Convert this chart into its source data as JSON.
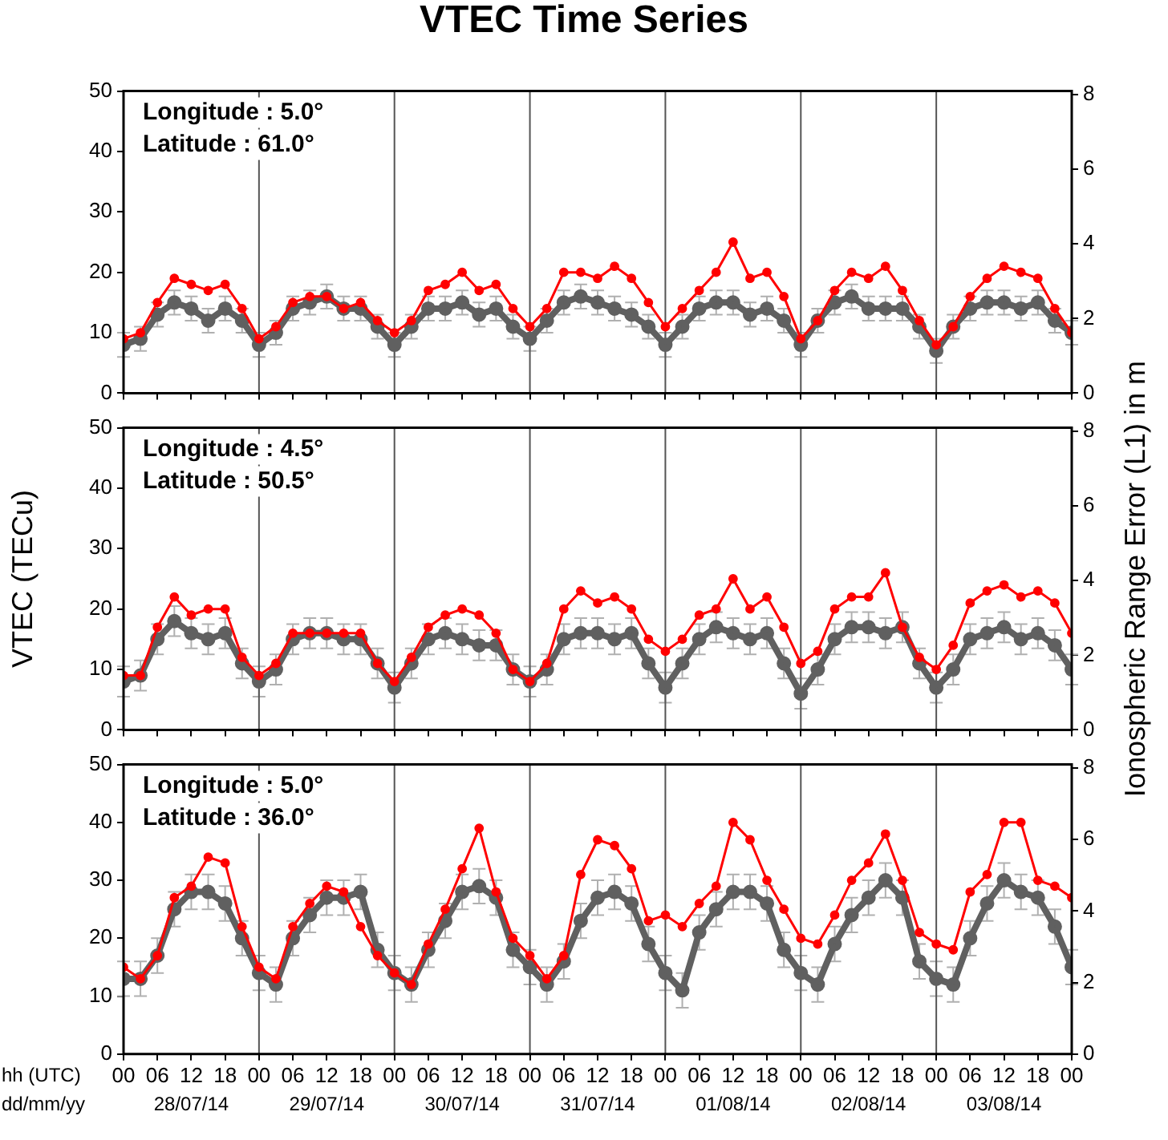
{
  "chart_data": [
    {
      "type": "line",
      "title": "VTEC Time Series",
      "x": [
        0,
        3,
        6,
        9,
        12,
        15,
        18,
        21,
        24,
        27,
        30,
        33,
        36,
        39,
        42,
        45,
        48,
        51,
        54,
        57,
        60,
        63,
        66,
        69,
        72,
        75,
        78,
        81,
        84,
        87,
        90,
        93,
        96,
        99,
        102,
        105,
        108,
        111,
        114,
        117,
        120,
        123,
        126,
        129,
        132,
        135,
        138,
        141,
        144,
        147,
        150,
        153,
        156,
        159,
        162,
        165,
        168
      ],
      "xlim": [
        0,
        168
      ],
      "xticks": [
        0,
        6,
        12,
        18,
        24,
        30,
        36,
        42,
        48,
        54,
        60,
        66,
        72,
        78,
        84,
        90,
        96,
        102,
        108,
        114,
        120,
        126,
        132,
        138,
        144,
        150,
        156,
        162,
        168
      ],
      "ylim": [
        0,
        50
      ],
      "yticks": [
        0,
        10,
        20,
        30,
        40,
        50
      ],
      "y2lim": [
        0,
        8.1
      ],
      "y2ticks": [
        0,
        2,
        4,
        6,
        8
      ],
      "tick_labels": "y",
      "marker": "circle",
      "ref_lines": [
        {
          "axis": "x",
          "value": 24
        },
        {
          "axis": "x",
          "value": 48
        },
        {
          "axis": "x",
          "value": 72
        },
        {
          "axis": "x",
          "value": 96
        },
        {
          "axis": "x",
          "value": 120
        },
        {
          "axis": "x",
          "value": 144
        }
      ],
      "annotations": [
        "Longitude : 5.0°",
        "Latitude : 61.0°"
      ],
      "series": [
        {
          "color": "#606060",
          "values": [
            8,
            9,
            13,
            15,
            14,
            12,
            14,
            12,
            8,
            10,
            14,
            15,
            16,
            14,
            14,
            11,
            8,
            11,
            14,
            14,
            15,
            13,
            14,
            11,
            9,
            12,
            15,
            16,
            15,
            14,
            13,
            11,
            8,
            11,
            14,
            15,
            15,
            13,
            14,
            12,
            8,
            12,
            15,
            16,
            14,
            14,
            14,
            11,
            7,
            11,
            14,
            15,
            15,
            14,
            15,
            12,
            10
          ],
          "errors": [
            2,
            2,
            2,
            2,
            2,
            2,
            2,
            2,
            2,
            2,
            2,
            2,
            2,
            2,
            2,
            2,
            2,
            2,
            2,
            2,
            2,
            2,
            2,
            2,
            2,
            2,
            2,
            2,
            2,
            2,
            2,
            2,
            2,
            2,
            2,
            2,
            2,
            2,
            2,
            2,
            2,
            2,
            2,
            2,
            2,
            2,
            2,
            2,
            2,
            2,
            2,
            2,
            2,
            2,
            2,
            2,
            2
          ]
        },
        {
          "color": "#ff0000",
          "values": [
            9,
            10,
            15,
            19,
            18,
            17,
            18,
            14,
            9,
            11,
            15,
            16,
            16,
            14,
            15,
            12,
            10,
            12,
            17,
            18,
            20,
            17,
            18,
            14,
            11,
            14,
            20,
            20,
            19,
            21,
            19,
            15,
            11,
            14,
            17,
            20,
            25,
            19,
            20,
            16,
            9,
            12,
            17,
            20,
            19,
            21,
            17,
            12,
            8,
            11,
            16,
            19,
            21,
            20,
            19,
            14,
            10
          ]
        }
      ]
    },
    {
      "type": "line",
      "x": [
        0,
        3,
        6,
        9,
        12,
        15,
        18,
        21,
        24,
        27,
        30,
        33,
        36,
        39,
        42,
        45,
        48,
        51,
        54,
        57,
        60,
        63,
        66,
        69,
        72,
        75,
        78,
        81,
        84,
        87,
        90,
        93,
        96,
        99,
        102,
        105,
        108,
        111,
        114,
        117,
        120,
        123,
        126,
        129,
        132,
        135,
        138,
        141,
        144,
        147,
        150,
        153,
        156,
        159,
        162,
        165,
        168
      ],
      "xlim": [
        0,
        168
      ],
      "xticks": [
        0,
        6,
        12,
        18,
        24,
        30,
        36,
        42,
        48,
        54,
        60,
        66,
        72,
        78,
        84,
        90,
        96,
        102,
        108,
        114,
        120,
        126,
        132,
        138,
        144,
        150,
        156,
        162,
        168
      ],
      "ylim": [
        0,
        50
      ],
      "yticks": [
        0,
        10,
        20,
        30,
        40,
        50
      ],
      "y2lim": [
        0,
        8.1
      ],
      "y2ticks": [
        0,
        2,
        4,
        6,
        8
      ],
      "tick_labels": "y",
      "marker": "circle",
      "ylabel": "VTEC (TECu)",
      "y2label": "Ionospheric Range Error (L1) in m",
      "ref_lines": [
        {
          "axis": "x",
          "value": 24
        },
        {
          "axis": "x",
          "value": 48
        },
        {
          "axis": "x",
          "value": 72
        },
        {
          "axis": "x",
          "value": 96
        },
        {
          "axis": "x",
          "value": 120
        },
        {
          "axis": "x",
          "value": 144
        }
      ],
      "annotations": [
        "Longitude : 4.5°",
        "Latitude : 50.5°"
      ],
      "series": [
        {
          "color": "#606060",
          "values": [
            8,
            9,
            15,
            18,
            16,
            15,
            16,
            11,
            8,
            10,
            15,
            16,
            16,
            15,
            15,
            11,
            7,
            11,
            15,
            16,
            15,
            14,
            14,
            10,
            8,
            10,
            15,
            16,
            16,
            15,
            16,
            11,
            7,
            11,
            15,
            17,
            16,
            15,
            16,
            11,
            6,
            10,
            15,
            17,
            17,
            16,
            17,
            11,
            7,
            10,
            15,
            16,
            17,
            15,
            16,
            14,
            10
          ],
          "errors": [
            2.5,
            2.5,
            2.5,
            2.5,
            2.5,
            2.5,
            2.5,
            2.5,
            2.5,
            2.5,
            2.5,
            2.5,
            2.5,
            2.5,
            2.5,
            2.5,
            2.5,
            2.5,
            2.5,
            2.5,
            2.5,
            2.5,
            2.5,
            2.5,
            2.5,
            2.5,
            2.5,
            2.5,
            2.5,
            2.5,
            2.5,
            2.5,
            2.5,
            2.5,
            2.5,
            2.5,
            2.5,
            2.5,
            2.5,
            2.5,
            2.5,
            2.5,
            2.5,
            2.5,
            2.5,
            2.5,
            2.5,
            2.5,
            2.5,
            2.5,
            2.5,
            2.5,
            2.5,
            2.5,
            2.5,
            2.5,
            2.5
          ]
        },
        {
          "color": "#ff0000",
          "values": [
            9,
            9,
            17,
            22,
            19,
            20,
            20,
            12,
            9,
            11,
            16,
            16,
            16,
            16,
            16,
            11,
            8,
            12,
            17,
            19,
            20,
            19,
            16,
            10,
            8,
            11,
            20,
            23,
            21,
            22,
            20,
            15,
            13,
            15,
            19,
            20,
            25,
            20,
            22,
            17,
            11,
            13,
            20,
            22,
            22,
            26,
            17,
            12,
            10,
            14,
            21,
            23,
            24,
            22,
            23,
            21,
            16
          ]
        }
      ]
    },
    {
      "type": "line",
      "x": [
        0,
        3,
        6,
        9,
        12,
        15,
        18,
        21,
        24,
        27,
        30,
        33,
        36,
        39,
        42,
        45,
        48,
        51,
        54,
        57,
        60,
        63,
        66,
        69,
        72,
        75,
        78,
        81,
        84,
        87,
        90,
        93,
        96,
        99,
        102,
        105,
        108,
        111,
        114,
        117,
        120,
        123,
        126,
        129,
        132,
        135,
        138,
        141,
        144,
        147,
        150,
        153,
        156,
        159,
        162,
        165,
        168
      ],
      "xlim": [
        0,
        168
      ],
      "xticks": [
        {
          "value": 0,
          "label": "00"
        },
        {
          "value": 6,
          "label": "06"
        },
        {
          "value": 12,
          "label": "12"
        },
        {
          "value": 18,
          "label": "18"
        },
        {
          "value": 24,
          "label": "00"
        },
        {
          "value": 30,
          "label": "06"
        },
        {
          "value": 36,
          "label": "12"
        },
        {
          "value": 42,
          "label": "18"
        },
        {
          "value": 48,
          "label": "00"
        },
        {
          "value": 54,
          "label": "06"
        },
        {
          "value": 60,
          "label": "12"
        },
        {
          "value": 66,
          "label": "18"
        },
        {
          "value": 72,
          "label": "00"
        },
        {
          "value": 78,
          "label": "06"
        },
        {
          "value": 84,
          "label": "12"
        },
        {
          "value": 90,
          "label": "18"
        },
        {
          "value": 96,
          "label": "00"
        },
        {
          "value": 102,
          "label": "06"
        },
        {
          "value": 108,
          "label": "12"
        },
        {
          "value": 114,
          "label": "18"
        },
        {
          "value": 120,
          "label": "00"
        },
        {
          "value": 126,
          "label": "06"
        },
        {
          "value": 132,
          "label": "12"
        },
        {
          "value": 138,
          "label": "18"
        },
        {
          "value": 144,
          "label": "00"
        },
        {
          "value": 150,
          "label": "06"
        },
        {
          "value": 156,
          "label": "12"
        },
        {
          "value": 162,
          "label": "18"
        },
        {
          "value": 168,
          "label": "00"
        }
      ],
      "ylim": [
        0,
        50
      ],
      "yticks": [
        0,
        10,
        20,
        30,
        40,
        50
      ],
      "y2lim": [
        0,
        8.1
      ],
      "y2ticks": [
        0,
        2,
        4,
        6,
        8
      ],
      "marker": "circle",
      "xlabel": "hh (UTC)",
      "ref_lines": [
        {
          "axis": "x",
          "value": 24
        },
        {
          "axis": "x",
          "value": 48
        },
        {
          "axis": "x",
          "value": 72
        },
        {
          "axis": "x",
          "value": 96
        },
        {
          "axis": "x",
          "value": 120
        },
        {
          "axis": "x",
          "value": 144
        }
      ],
      "annotations": [
        "Longitude : 5.0°",
        "Latitude : 36.0°",
        "dd/mm/yy",
        "28/07/14",
        "29/07/14",
        "30/07/14",
        "31/07/14",
        "01/08/14",
        "02/08/14",
        "03/08/14"
      ],
      "series": [
        {
          "color": "#606060",
          "values": [
            13,
            13,
            17,
            25,
            28,
            28,
            26,
            20,
            14,
            12,
            20,
            24,
            27,
            27,
            28,
            18,
            14,
            12,
            18,
            23,
            28,
            29,
            27,
            18,
            15,
            12,
            16,
            23,
            27,
            28,
            26,
            19,
            14,
            11,
            21,
            25,
            28,
            28,
            26,
            18,
            14,
            12,
            19,
            24,
            27,
            30,
            27,
            16,
            13,
            12,
            20,
            26,
            30,
            28,
            27,
            22,
            15
          ],
          "errors": [
            3,
            3,
            3,
            3,
            3,
            3,
            3,
            3,
            3,
            3,
            3,
            3,
            3,
            3,
            3,
            3,
            3,
            3,
            3,
            3,
            3,
            3,
            3,
            3,
            3,
            3,
            3,
            3,
            3,
            3,
            3,
            3,
            3,
            3,
            3,
            3,
            3,
            3,
            3,
            3,
            3,
            3,
            3,
            3,
            3,
            3,
            3,
            3,
            3,
            3,
            3,
            3,
            3,
            3,
            3,
            3,
            3
          ]
        },
        {
          "color": "#ff0000",
          "values": [
            15,
            13,
            17,
            27,
            29,
            34,
            33,
            22,
            15,
            13,
            22,
            26,
            29,
            28,
            22,
            17,
            14,
            12,
            19,
            25,
            32,
            39,
            28,
            20,
            17,
            13,
            17,
            31,
            37,
            36,
            32,
            23,
            24,
            22,
            26,
            29,
            40,
            37,
            30,
            25,
            20,
            19,
            24,
            30,
            33,
            38,
            30,
            21,
            19,
            18,
            28,
            31,
            40,
            40,
            30,
            29,
            27
          ]
        }
      ]
    }
  ]
}
